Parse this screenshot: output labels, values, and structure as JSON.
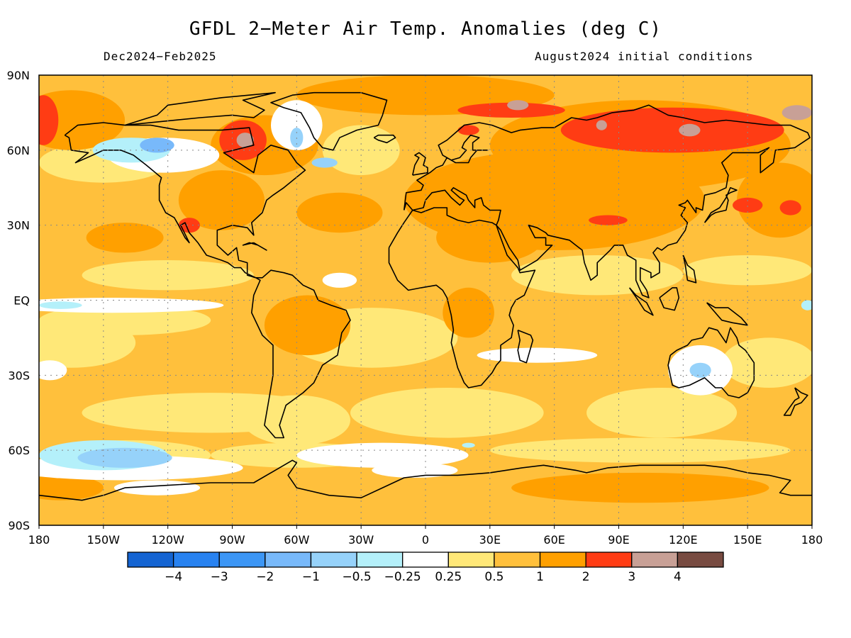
{
  "title": "GFDL 2−Meter Air Temp. Anomalies (deg C)",
  "subtitle_left": "Dec2024−Feb2025",
  "subtitle_right": "August2024 initial conditions",
  "lat_ticks": [
    {
      "value": 90,
      "label": "90N"
    },
    {
      "value": 60,
      "label": "60N"
    },
    {
      "value": 30,
      "label": "30N"
    },
    {
      "value": 0,
      "label": "EQ"
    },
    {
      "value": -30,
      "label": "30S"
    },
    {
      "value": -60,
      "label": "60S"
    },
    {
      "value": -90,
      "label": "90S"
    }
  ],
  "lon_ticks": [
    {
      "value": -180,
      "label": "180"
    },
    {
      "value": -150,
      "label": "150W"
    },
    {
      "value": -120,
      "label": "120W"
    },
    {
      "value": -90,
      "label": "90W"
    },
    {
      "value": -60,
      "label": "60W"
    },
    {
      "value": -30,
      "label": "30W"
    },
    {
      "value": 0,
      "label": "0"
    },
    {
      "value": 30,
      "label": "30E"
    },
    {
      "value": 60,
      "label": "60E"
    },
    {
      "value": 90,
      "label": "90E"
    },
    {
      "value": 120,
      "label": "120E"
    },
    {
      "value": 150,
      "label": "150E"
    },
    {
      "value": 180,
      "label": "180"
    }
  ],
  "colorbar": {
    "colors": [
      "#1464d2",
      "#2882f0",
      "#3c96f5",
      "#78b9fa",
      "#96d2fa",
      "#b4f0fa",
      "#ffffff",
      "#ffe878",
      "#ffc03c",
      "#ffa000",
      "#ff3c14",
      "#c8a096",
      "#784b41"
    ],
    "labels": [
      "−4",
      "−3",
      "−2",
      "−1",
      "−0.5",
      "−0.25",
      "0.25",
      "0.5",
      "1",
      "2",
      "3",
      "4"
    ]
  },
  "map_colors": {
    "base": "#ffc03c",
    "level_0p5": "#ffe878",
    "level_2": "#ffa000",
    "level_3": "#ff3c14",
    "level_4": "#c8a096",
    "near_zero": "#ffffff",
    "cool_0p25": "#b4f0fa",
    "cool_0p5": "#96d2fa",
    "cool_1": "#78b9fa",
    "coast": "#000000"
  }
}
